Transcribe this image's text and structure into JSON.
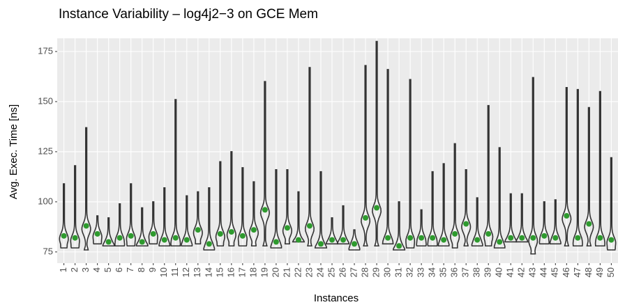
{
  "chart_data": {
    "type": "violin",
    "title": "Instance Variability – log4j2−3 on GCE Mem",
    "x_label": "Instances",
    "y_label": "Avg. Exec. Time [ns]",
    "categories": [
      "1",
      "2",
      "3",
      "4",
      "5",
      "6",
      "7",
      "8",
      "9",
      "10",
      "11",
      "12",
      "13",
      "14",
      "15",
      "16",
      "17",
      "18",
      "19",
      "20",
      "21",
      "22",
      "23",
      "24",
      "25",
      "26",
      "27",
      "28",
      "29",
      "30",
      "31",
      "32",
      "33",
      "34",
      "35",
      "36",
      "37",
      "38",
      "39",
      "40",
      "41",
      "42",
      "43",
      "44",
      "45",
      "46",
      "47",
      "48",
      "49",
      "50"
    ],
    "means": [
      83,
      82,
      88,
      84,
      80,
      82,
      83,
      80,
      84,
      81,
      82,
      81,
      86,
      79,
      84,
      85,
      83,
      86,
      96,
      80,
      87,
      81,
      88,
      79,
      81,
      81,
      79,
      92,
      97,
      82,
      78,
      82,
      82,
      82,
      81,
      84,
      89,
      81,
      84,
      80,
      82,
      82,
      82,
      83,
      82,
      93,
      82,
      89,
      82,
      81
    ],
    "min": [
      77,
      77,
      76,
      79,
      78,
      78,
      78,
      78,
      79,
      78,
      78,
      78,
      79,
      76,
      78,
      78,
      78,
      78,
      78,
      77,
      79,
      80,
      78,
      77,
      79,
      79,
      76,
      78,
      78,
      79,
      76,
      77,
      78,
      78,
      78,
      77,
      78,
      78,
      78,
      77,
      80,
      80,
      74,
      79,
      79,
      78,
      78,
      78,
      78,
      76
    ],
    "max": [
      109,
      118,
      137,
      93,
      92,
      99,
      109,
      97,
      100,
      107,
      151,
      103,
      105,
      107,
      120,
      125,
      117,
      110,
      160,
      116,
      116,
      105,
      167,
      115,
      92,
      98,
      86,
      168,
      180,
      166,
      100,
      161,
      96,
      115,
      119,
      129,
      116,
      102,
      148,
      127,
      104,
      104,
      162,
      100,
      101,
      157,
      156,
      147,
      155,
      122
    ],
    "violin_color": "#333333",
    "mean_color": "#2e9a2e",
    "ylim": [
      69.4,
      181.6
    ],
    "yticks": [
      75,
      100,
      125,
      150,
      175
    ],
    "grid": true
  }
}
